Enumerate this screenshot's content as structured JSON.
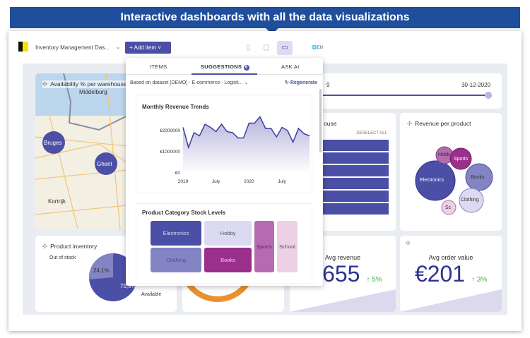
{
  "banner": {
    "text": "Interactive dashboards with all the data visualizations"
  },
  "toolbar": {
    "dashboard_title": "Inventory Management Das...",
    "add_item": "+  Add item  ˅",
    "language": "EN",
    "devices": [
      "mobile-icon",
      "tablet-icon",
      "desktop-icon"
    ]
  },
  "colors": {
    "accent": "#4b4fa6",
    "banner": "#1f4e9c",
    "positive": "#3cb043"
  },
  "popup": {
    "tabs": [
      {
        "label": "ITEMS"
      },
      {
        "label": "SUGGESTIONS",
        "badge": "6"
      },
      {
        "label": "ASK AI"
      }
    ],
    "dataset": "Based on dataset [DEMO] - E-commerce - Logisti...",
    "regenerate": "Regenerate"
  },
  "map": {
    "title": "Availability % per warehouse",
    "cities": [
      "Middelburg",
      "Bruges",
      "Ghent",
      "Kortrijk"
    ]
  },
  "date_filter": {
    "start_fragment": "9",
    "end": "30-12-2020"
  },
  "bar_card": {
    "title_fragment": "ouse",
    "deselect": "DESELECT ALL"
  },
  "bubble": {
    "title": "Revenue per product",
    "items": [
      "Electronics",
      "Hobb",
      "Sports",
      "Books",
      "Clothing",
      "Sc"
    ]
  },
  "pie": {
    "title": "Product inventory",
    "out_label": "Out of stock",
    "in_label": "Available",
    "out_pct": "24,1%",
    "in_pct": "75,9%"
  },
  "kpis": [
    {
      "title": "Avg revenue",
      "value": "7.655",
      "delta": "↑ 5%"
    },
    {
      "title": "Avg order value",
      "value": "€201",
      "delta": "↑ 3%"
    }
  ],
  "chart_data": [
    {
      "type": "area",
      "title": "Monthly Revenue Trends",
      "yticks": [
        "€0",
        "€1000000",
        "€2000000"
      ],
      "xticks": [
        "2019",
        "July",
        "2020",
        "July"
      ],
      "ylim": [
        0,
        3000000
      ],
      "x": [
        "2019-01",
        "2019-02",
        "2019-03",
        "2019-04",
        "2019-05",
        "2019-06",
        "2019-07",
        "2019-08",
        "2019-09",
        "2019-10",
        "2019-11",
        "2019-12",
        "2020-01",
        "2020-02",
        "2020-03",
        "2020-04",
        "2020-05",
        "2020-06",
        "2020-07",
        "2020-08",
        "2020-09",
        "2020-10",
        "2020-11",
        "2020-12"
      ],
      "values": [
        2150000,
        1200000,
        1900000,
        1750000,
        2300000,
        2150000,
        1950000,
        2300000,
        1950000,
        1900000,
        1650000,
        1650000,
        2350000,
        2350000,
        2650000,
        2100000,
        2100000,
        1700000,
        2150000,
        2000000,
        1450000,
        2100000,
        1850000,
        1750000
      ]
    },
    {
      "type": "treemap",
      "title": "Product Category Stock Levels",
      "categories": [
        "Electronics",
        "Hobby",
        "Clothing",
        "Books",
        "Sports",
        "School"
      ]
    }
  ]
}
